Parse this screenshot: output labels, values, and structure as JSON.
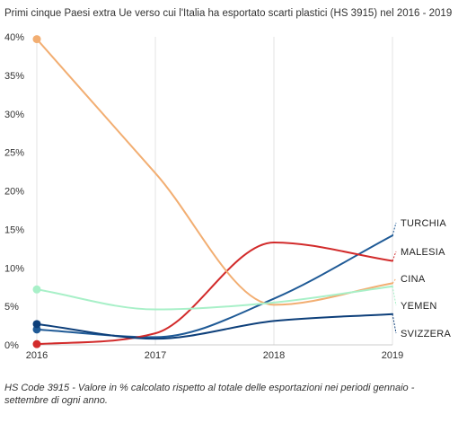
{
  "chart_data": {
    "type": "line",
    "title": "Primi cinque Paesi extra Ue verso cui l'Italia ha esportato scarti plastici (HS 3915) nel 2016 - 2019",
    "x": [
      "2016",
      "2017",
      "2018",
      "2019"
    ],
    "ylim": [
      0,
      40
    ],
    "yticks": [
      "0%",
      "5%",
      "10%",
      "15%",
      "20%",
      "25%",
      "30%",
      "35%",
      "40%"
    ],
    "grid": "vertical-only",
    "legend": "end-of-line labels",
    "series": [
      {
        "name": "TURCHIA",
        "values": [
          2.0,
          1.0,
          6.0,
          14.2
        ],
        "color": "#1f5a96"
      },
      {
        "name": "MALESIA",
        "values": [
          0.1,
          1.5,
          13.3,
          10.9
        ],
        "color": "#d22b2b"
      },
      {
        "name": "CINA",
        "values": [
          39.7,
          22.3,
          5.2,
          8.0
        ],
        "color": "#f2ae72"
      },
      {
        "name": "YEMEN",
        "values": [
          7.2,
          4.6,
          5.5,
          7.6
        ],
        "color": "#a8f0c8"
      },
      {
        "name": "SVIZZERA",
        "values": [
          2.7,
          0.8,
          3.1,
          4.0
        ],
        "color": "#0d3f7a"
      }
    ],
    "footnote": "HS Code 3915 - Valore in % calcolato rispetto al totale delle esportazioni nei periodi gennaio - settembre di ogni anno."
  }
}
